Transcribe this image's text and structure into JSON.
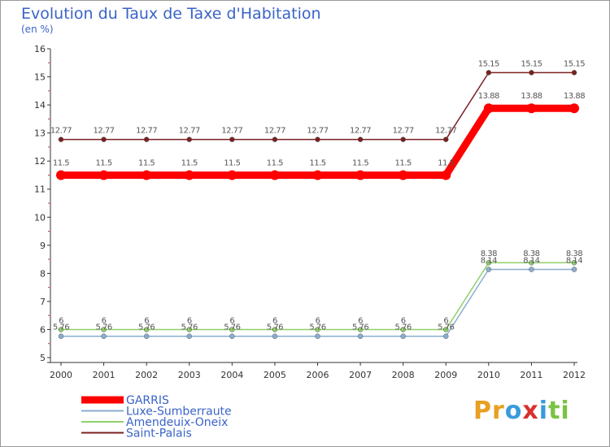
{
  "header": {
    "title": "Evolution du Taux de Taxe d'Habitation",
    "subtitle": "(en %)"
  },
  "logo": {
    "text": "Proxiti",
    "letters": [
      "P",
      "r",
      "o",
      "x",
      "i",
      "t",
      "i"
    ],
    "letter_colors": [
      "#e8a020",
      "#e8a020",
      "#3a9adc",
      "#d93030",
      "#3a9adc",
      "#7cc243",
      "#7cc243"
    ]
  },
  "chart_data": {
    "type": "line",
    "title": "Evolution du Taux de Taxe d'Habitation",
    "ylabel": "(en %)",
    "xlabel": "",
    "x": [
      "2000",
      "2001",
      "2002",
      "2003",
      "2004",
      "2005",
      "2006",
      "2007",
      "2008",
      "2009",
      "2010",
      "2011",
      "2012"
    ],
    "ylim": [
      5,
      16
    ],
    "yticks": [
      5,
      6,
      7,
      8,
      9,
      10,
      11,
      12,
      13,
      14,
      15,
      16
    ],
    "series": [
      {
        "name": "Saint-Palais",
        "color": "#7a2020",
        "values": [
          12.77,
          12.77,
          12.77,
          12.77,
          12.77,
          12.77,
          12.77,
          12.77,
          12.77,
          12.77,
          15.15,
          15.15,
          15.15
        ],
        "labels": [
          "12.77",
          "12.77",
          "12.77",
          "12.77",
          "12.77",
          "12.77",
          "12.77",
          "12.77",
          "12.77",
          "12.77",
          "15.15",
          "15.15",
          "15.15"
        ]
      },
      {
        "name": "GARRIS",
        "color": "#ff0000",
        "values": [
          11.5,
          11.5,
          11.5,
          11.5,
          11.5,
          11.5,
          11.5,
          11.5,
          11.5,
          11.5,
          13.88,
          13.88,
          13.88
        ],
        "labels": [
          "11.5",
          "11.5",
          "11.5",
          "11.5",
          "11.5",
          "11.5",
          "11.5",
          "11.5",
          "11.5",
          "11.5",
          "13.88",
          "13.88",
          "13.88"
        ]
      },
      {
        "name": "Amendeuix-Oneix",
        "color": "#8fd06a",
        "values": [
          6,
          6,
          6,
          6,
          6,
          6,
          6,
          6,
          6,
          6,
          8.38,
          8.38,
          8.38
        ],
        "labels": [
          "6",
          "6",
          "6",
          "6",
          "6",
          "6",
          "6",
          "6",
          "6",
          "6",
          "8.38",
          "8.38",
          "8.38"
        ]
      },
      {
        "name": "Luxe-Sumberraute",
        "color": "#8aaed0",
        "values": [
          5.76,
          5.76,
          5.76,
          5.76,
          5.76,
          5.76,
          5.76,
          5.76,
          5.76,
          5.76,
          8.14,
          8.14,
          8.14
        ],
        "labels": [
          "5.76",
          "5.76",
          "5.76",
          "5.76",
          "5.76",
          "5.76",
          "5.76",
          "5.76",
          "5.76",
          "5.76",
          "8.14",
          "8.14",
          "8.14"
        ]
      }
    ],
    "legend": [
      "GARRIS",
      "Luxe-Sumberraute",
      "Amendeuix-Oneix",
      "Saint-Palais"
    ],
    "legend_position": "bottom-left",
    "grid": false
  }
}
